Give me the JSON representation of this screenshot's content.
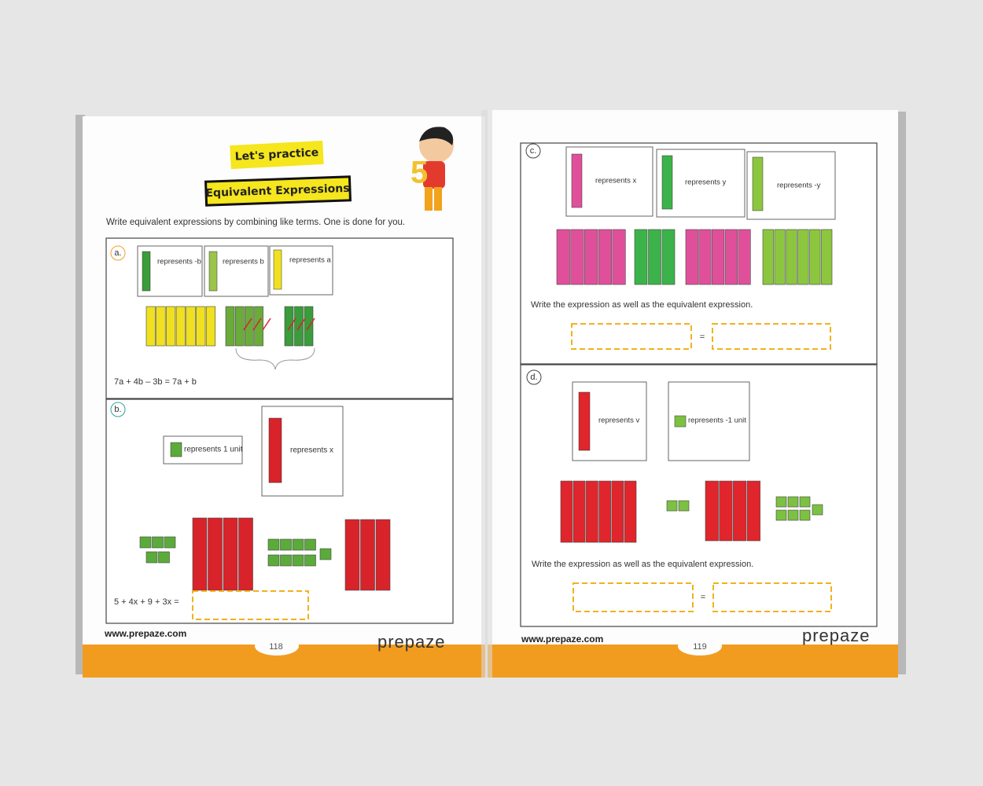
{
  "left_page": {
    "badge": "Let's practice",
    "title": "Equivalent Expressions",
    "instructions": "Write equivalent expressions by combining like terms. One is done for you.",
    "problems": [
      {
        "label": "a.",
        "keys": [
          "represents -b",
          "represents b",
          "represents a"
        ],
        "equation": "7a + 4b – 3b = 7a + b"
      },
      {
        "label": "b.",
        "keys": [
          "represents 1 unit",
          "represents x"
        ],
        "equation": "5 + 4x + 9 + 3x ="
      }
    ],
    "footer": {
      "url": "www.prepaze.com",
      "page_number": "118",
      "logo": "prepaze"
    }
  },
  "right_page": {
    "problems": [
      {
        "label": "c.",
        "keys": [
          "represents x",
          "represents y",
          "represents -y"
        ],
        "prompt": "Write the expression as well as the equivalent expression.",
        "equals": "="
      },
      {
        "label": "d.",
        "keys": [
          "represents v",
          "represents -1 unit"
        ],
        "prompt": "Write the expression as well as the equivalent expression.",
        "equals": "="
      }
    ],
    "footer": {
      "url": "www.prepaze.com",
      "page_number": "119",
      "logo": "prepaze"
    }
  }
}
